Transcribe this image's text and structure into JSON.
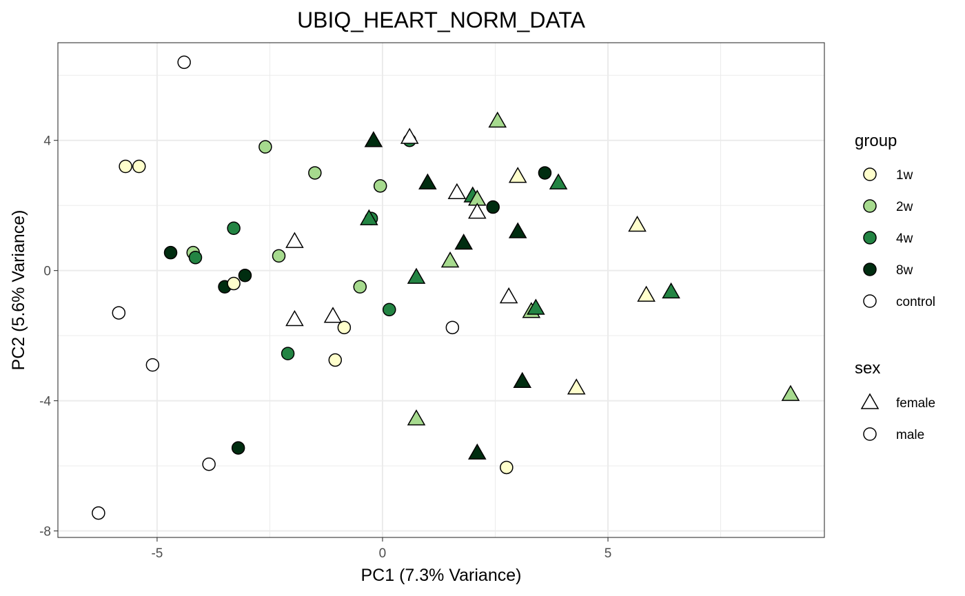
{
  "chart_data": {
    "type": "scatter",
    "title": "UBIQ_HEART_NORM_DATA",
    "xlabel": "PC1 (7.3% Variance)",
    "ylabel": "PC2 (5.6% Variance)",
    "xlim": [
      -7.2,
      9.8
    ],
    "ylim": [
      -8.2,
      7.0
    ],
    "x_ticks": [
      -5,
      0,
      5
    ],
    "x_tick_labels": [
      "-5",
      "0",
      "5"
    ],
    "y_ticks": [
      -8,
      -4,
      0,
      4
    ],
    "y_tick_labels": [
      "-8",
      "-4",
      "0",
      "4"
    ],
    "grid": true,
    "legend_position": "right",
    "legends": {
      "group": {
        "title": "group",
        "items": [
          {
            "label": "1w",
            "color": "#FFFFCC"
          },
          {
            "label": "2w",
            "color": "#A6DA8E"
          },
          {
            "label": "4w",
            "color": "#238443"
          },
          {
            "label": "8w",
            "color": "#002D10"
          },
          {
            "label": "control",
            "color": "#FFFFFF"
          }
        ]
      },
      "sex": {
        "title": "sex",
        "items": [
          {
            "label": "female",
            "shape": "triangle"
          },
          {
            "label": "male",
            "shape": "circle"
          }
        ]
      }
    },
    "points": [
      {
        "x": -4.4,
        "y": 6.4,
        "group": "control",
        "sex": "male"
      },
      {
        "x": -5.7,
        "y": 3.2,
        "group": "1w",
        "sex": "male"
      },
      {
        "x": -5.4,
        "y": 3.2,
        "group": "1w",
        "sex": "male"
      },
      {
        "x": -2.6,
        "y": 3.8,
        "group": "2w",
        "sex": "male"
      },
      {
        "x": -1.5,
        "y": 3.0,
        "group": "2w",
        "sex": "male"
      },
      {
        "x": -0.05,
        "y": 2.6,
        "group": "2w",
        "sex": "male"
      },
      {
        "x": 0.6,
        "y": 4.0,
        "group": "4w",
        "sex": "male"
      },
      {
        "x": -3.3,
        "y": 1.3,
        "group": "4w",
        "sex": "male"
      },
      {
        "x": -4.7,
        "y": 0.55,
        "group": "8w",
        "sex": "male"
      },
      {
        "x": -4.2,
        "y": 0.55,
        "group": "2w",
        "sex": "male"
      },
      {
        "x": -4.15,
        "y": 0.4,
        "group": "4w",
        "sex": "male"
      },
      {
        "x": -2.3,
        "y": 0.45,
        "group": "2w",
        "sex": "male"
      },
      {
        "x": -0.25,
        "y": 1.6,
        "group": "4w",
        "sex": "male"
      },
      {
        "x": 2.45,
        "y": 1.95,
        "group": "8w",
        "sex": "male"
      },
      {
        "x": 3.6,
        "y": 3.0,
        "group": "8w",
        "sex": "male"
      },
      {
        "x": -3.5,
        "y": -0.5,
        "group": "8w",
        "sex": "male"
      },
      {
        "x": -3.3,
        "y": -0.4,
        "group": "1w",
        "sex": "male"
      },
      {
        "x": -3.05,
        "y": -0.15,
        "group": "8w",
        "sex": "male"
      },
      {
        "x": -0.5,
        "y": -0.5,
        "group": "2w",
        "sex": "male"
      },
      {
        "x": 0.15,
        "y": -1.2,
        "group": "4w",
        "sex": "male"
      },
      {
        "x": -5.85,
        "y": -1.3,
        "group": "control",
        "sex": "male"
      },
      {
        "x": -0.85,
        "y": -1.75,
        "group": "1w",
        "sex": "male"
      },
      {
        "x": 1.55,
        "y": -1.75,
        "group": "control",
        "sex": "male"
      },
      {
        "x": -5.1,
        "y": -2.9,
        "group": "control",
        "sex": "male"
      },
      {
        "x": -2.1,
        "y": -2.55,
        "group": "4w",
        "sex": "male"
      },
      {
        "x": -1.05,
        "y": -2.75,
        "group": "1w",
        "sex": "male"
      },
      {
        "x": -3.2,
        "y": -5.45,
        "group": "8w",
        "sex": "male"
      },
      {
        "x": -3.85,
        "y": -5.95,
        "group": "control",
        "sex": "male"
      },
      {
        "x": 2.75,
        "y": -6.05,
        "group": "1w",
        "sex": "male"
      },
      {
        "x": -6.3,
        "y": -7.45,
        "group": "control",
        "sex": "male"
      },
      {
        "x": 0.6,
        "y": 4.1,
        "group": "control",
        "sex": "female"
      },
      {
        "x": -0.2,
        "y": 4.0,
        "group": "8w",
        "sex": "female"
      },
      {
        "x": 2.55,
        "y": 4.6,
        "group": "2w",
        "sex": "female"
      },
      {
        "x": 1.0,
        "y": 2.7,
        "group": "8w",
        "sex": "female"
      },
      {
        "x": 1.65,
        "y": 2.4,
        "group": "control",
        "sex": "female"
      },
      {
        "x": 2.0,
        "y": 2.3,
        "group": "4w",
        "sex": "female"
      },
      {
        "x": 2.1,
        "y": 2.2,
        "group": "2w",
        "sex": "female"
      },
      {
        "x": 2.1,
        "y": 1.8,
        "group": "control",
        "sex": "female"
      },
      {
        "x": 3.0,
        "y": 2.9,
        "group": "1w",
        "sex": "female"
      },
      {
        "x": 3.9,
        "y": 2.7,
        "group": "4w",
        "sex": "female"
      },
      {
        "x": 3.0,
        "y": 1.2,
        "group": "8w",
        "sex": "female"
      },
      {
        "x": 5.65,
        "y": 1.4,
        "group": "1w",
        "sex": "female"
      },
      {
        "x": -0.3,
        "y": 1.6,
        "group": "4w",
        "sex": "female"
      },
      {
        "x": -1.95,
        "y": 0.9,
        "group": "control",
        "sex": "female"
      },
      {
        "x": 1.8,
        "y": 0.85,
        "group": "8w",
        "sex": "female"
      },
      {
        "x": 1.5,
        "y": 0.3,
        "group": "2w",
        "sex": "female"
      },
      {
        "x": 0.75,
        "y": -0.2,
        "group": "4w",
        "sex": "female"
      },
      {
        "x": 2.8,
        "y": -0.8,
        "group": "control",
        "sex": "female"
      },
      {
        "x": 5.85,
        "y": -0.75,
        "group": "1w",
        "sex": "female"
      },
      {
        "x": 6.4,
        "y": -0.65,
        "group": "4w",
        "sex": "female"
      },
      {
        "x": 3.3,
        "y": -1.25,
        "group": "2w",
        "sex": "female"
      },
      {
        "x": 3.4,
        "y": -1.15,
        "group": "4w",
        "sex": "female"
      },
      {
        "x": -1.1,
        "y": -1.4,
        "group": "control",
        "sex": "female"
      },
      {
        "x": -1.95,
        "y": -1.5,
        "group": "control",
        "sex": "female"
      },
      {
        "x": 3.1,
        "y": -3.4,
        "group": "8w",
        "sex": "female"
      },
      {
        "x": 4.3,
        "y": -3.6,
        "group": "1w",
        "sex": "female"
      },
      {
        "x": 9.05,
        "y": -3.8,
        "group": "2w",
        "sex": "female"
      },
      {
        "x": 0.75,
        "y": -4.55,
        "group": "2w",
        "sex": "female"
      },
      {
        "x": 2.1,
        "y": -5.6,
        "group": "8w",
        "sex": "female"
      }
    ]
  }
}
